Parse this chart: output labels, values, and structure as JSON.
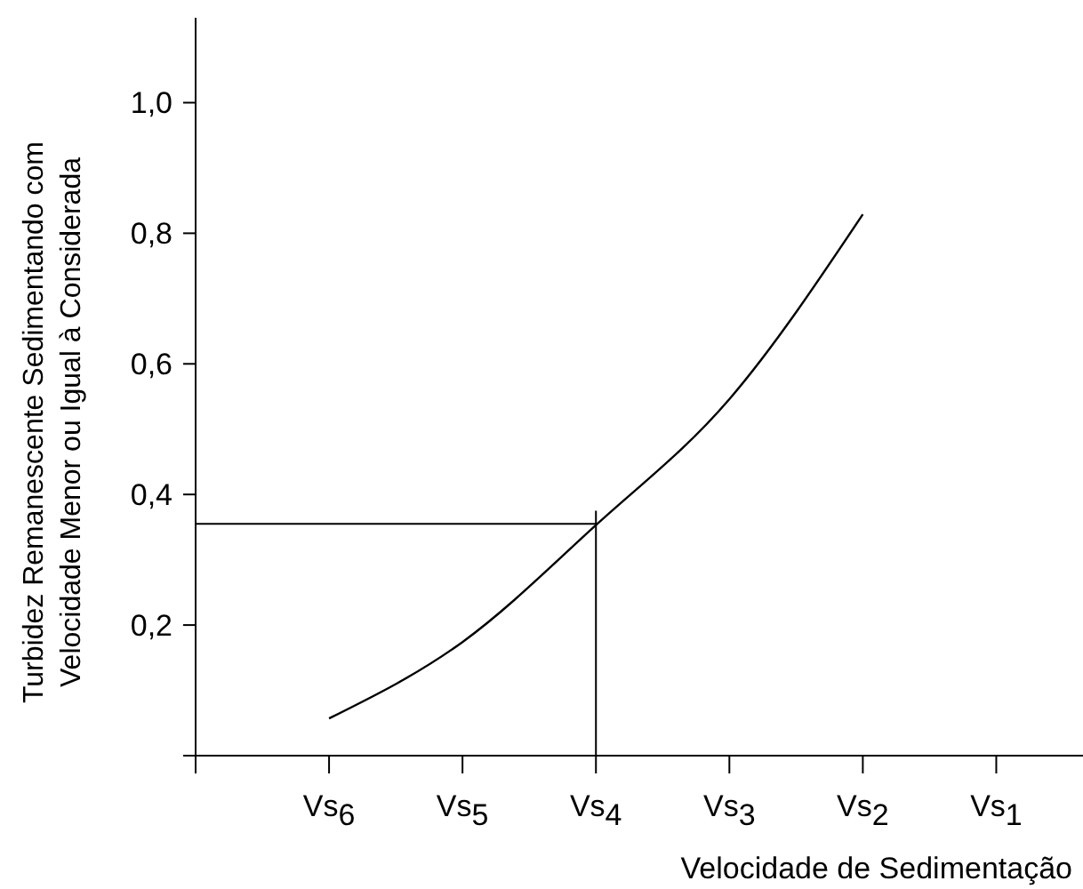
{
  "chart_data": {
    "type": "line",
    "xlabel": "Velocidade de Sedimentação",
    "ylabel": "Turbidez Remanescente Sedimentando com\nVelocidade Menor  ou  Igual à Considerada",
    "categories": [
      null,
      "Vs$_{6}$",
      "Vs$_{5}$",
      "Vs$_{4}$",
      "Vs$_{3}$",
      "Vs$_{2}$",
      "Vs$_{1}$"
    ],
    "ylim": [
      0,
      1.13
    ],
    "yticks": [
      {
        "value": 0,
        "label": null
      },
      {
        "value": 0.2,
        "label": "0,2"
      },
      {
        "value": 0.4,
        "label": "0,4"
      },
      {
        "value": 0.6,
        "label": "0,6"
      },
      {
        "value": 0.8,
        "label": "0,8"
      },
      {
        "value": 1.0,
        "label": "1,0"
      }
    ],
    "grid": false,
    "marker": "none",
    "line_style": "solid",
    "series": [
      {
        "color": "#000000",
        "values": [
          null,
          0.057,
          0.174,
          0.353,
          0.546,
          0.829,
          null
        ]
      }
    ],
    "ref_lines": [
      {
        "axis": "y",
        "value": 0.355,
        "color": "#000000"
      },
      {
        "axis": "x",
        "value": "Vs$_{4}$",
        "color": "#000000"
      }
    ]
  }
}
